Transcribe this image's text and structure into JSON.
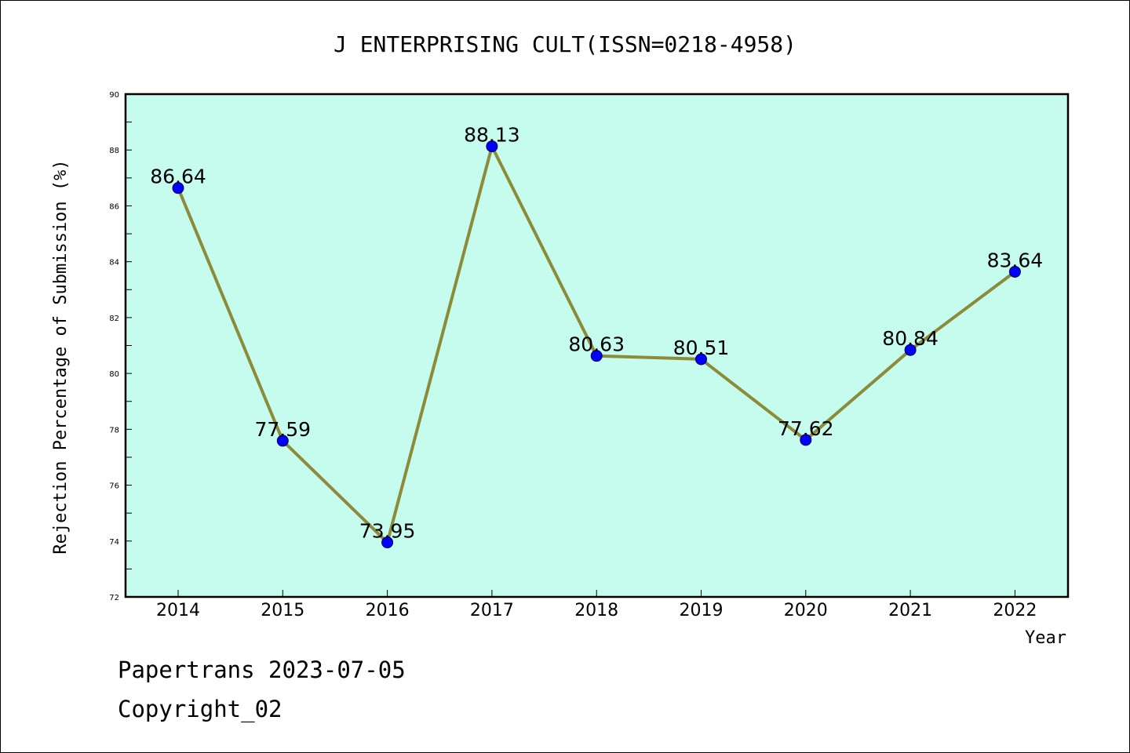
{
  "chart_data": {
    "type": "line",
    "title": "J ENTERPRISING CULT(ISSN=0218-4958)",
    "xlabel": "Year",
    "ylabel": "Rejection Percentage of Submission (%)",
    "categories": [
      "2014",
      "2015",
      "2016",
      "2017",
      "2018",
      "2019",
      "2020",
      "2021",
      "2022"
    ],
    "values": [
      86.64,
      77.59,
      73.95,
      88.13,
      80.63,
      80.51,
      77.62,
      80.84,
      83.64
    ],
    "data_labels": [
      "86.64",
      "77.59",
      "73.95",
      "88.13",
      "80.63",
      "80.51",
      "77.62",
      "80.84",
      "83.64"
    ],
    "ylim": [
      72,
      90
    ],
    "yticks": [
      "72",
      "74",
      "76",
      "78",
      "80",
      "82",
      "84",
      "86",
      "88",
      "90"
    ],
    "grid": false,
    "legend": "none",
    "colors": {
      "plot_background": "#c6fcee",
      "line": "#8b8b3a",
      "marker": "#0000ff"
    }
  },
  "footer": {
    "line1": "Papertrans 2023-07-05",
    "line2": "Copyright_02"
  }
}
